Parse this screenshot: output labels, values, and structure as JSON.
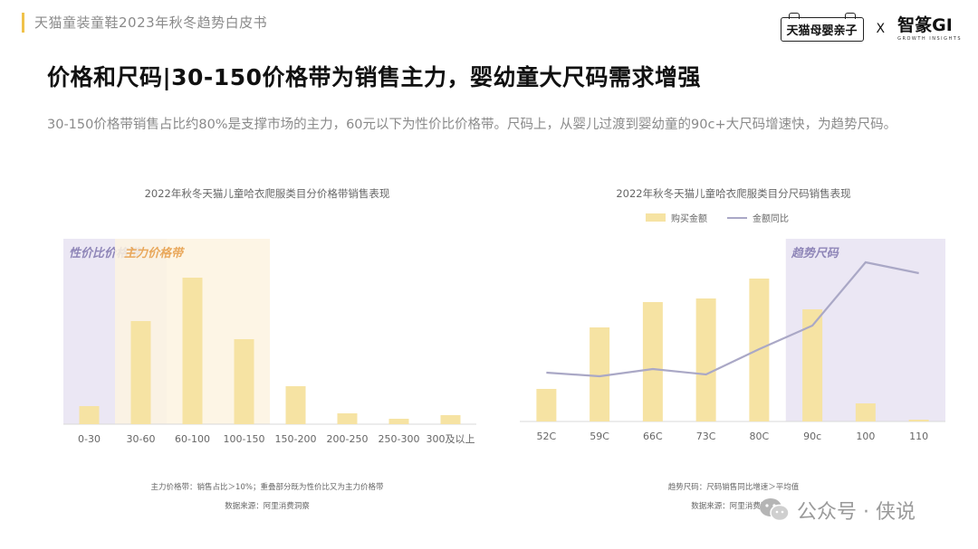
{
  "header": {
    "report_title": "天猫童装童鞋2023年秋冬趋势白皮书",
    "logo_tmall": "天猫母婴亲子",
    "logo_x": "X",
    "logo_gi": "智篆GI",
    "logo_gi_sub": "GROWTH INSIGHTS"
  },
  "page": {
    "title": "价格和尺码|30-150价格带为销售主力，婴幼童大尺码需求增强",
    "summary": "30-150价格带销售占比约80%是支撑市场的主力，60元以下为性价比价格带。尺码上，从婴儿过渡到婴幼童的90c+大尺码增速快，为趋势尺码。"
  },
  "chart_data": [
    {
      "type": "bar",
      "title": "2022年秋冬天猫儿童哈衣爬服类目分价格带销售表现",
      "categories": [
        "0-30",
        "30-60",
        "60-100",
        "100-150",
        "150-200",
        "200-250",
        "250-300",
        "300及以上"
      ],
      "values": [
        10,
        57,
        81,
        47,
        21,
        6,
        3,
        5
      ],
      "bar_color": "#f6e3a3",
      "highlight_regions": [
        {
          "label": "性价比价格带",
          "from": "0-30",
          "to": "30-60",
          "color": "#ebe7f4",
          "label_color": "#8f86b8"
        },
        {
          "label": "主力价格带",
          "from": "30-60",
          "to": "100-150",
          "color": "#fdf3e1",
          "label_color": "#e9a85c"
        }
      ],
      "footnotes": [
        "主力价格带：销售占比＞10%；重叠部分既为性价比又为主力价格带",
        "数据来源：阿里消费洞察"
      ]
    },
    {
      "type": "bar",
      "title": "2022年秋冬天猫儿童哈衣爬服类目分尺码销售表现",
      "categories": [
        "52C",
        "59C",
        "66C",
        "73C",
        "80C",
        "90c",
        "100",
        "110"
      ],
      "series": [
        {
          "name": "购买金额",
          "type": "bar",
          "values": [
            18,
            52,
            66,
            68,
            79,
            62,
            10,
            1
          ],
          "color": "#f6e3a3"
        },
        {
          "name": "金额同比",
          "type": "line",
          "values": [
            27,
            25,
            29,
            26,
            40,
            53,
            88,
            82
          ],
          "color": "#aaa8c6"
        }
      ],
      "highlight_regions": [
        {
          "label": "趋势尺码",
          "from": "90c",
          "to": "110",
          "color": "#ebe7f4",
          "label_color": "#8f86b8"
        }
      ],
      "footnotes": [
        "趋势尺码：尺码销售同比增速＞平均值",
        "数据来源：阿里消费洞察"
      ]
    }
  ],
  "watermark": {
    "text": "公众号 · 侠说"
  }
}
